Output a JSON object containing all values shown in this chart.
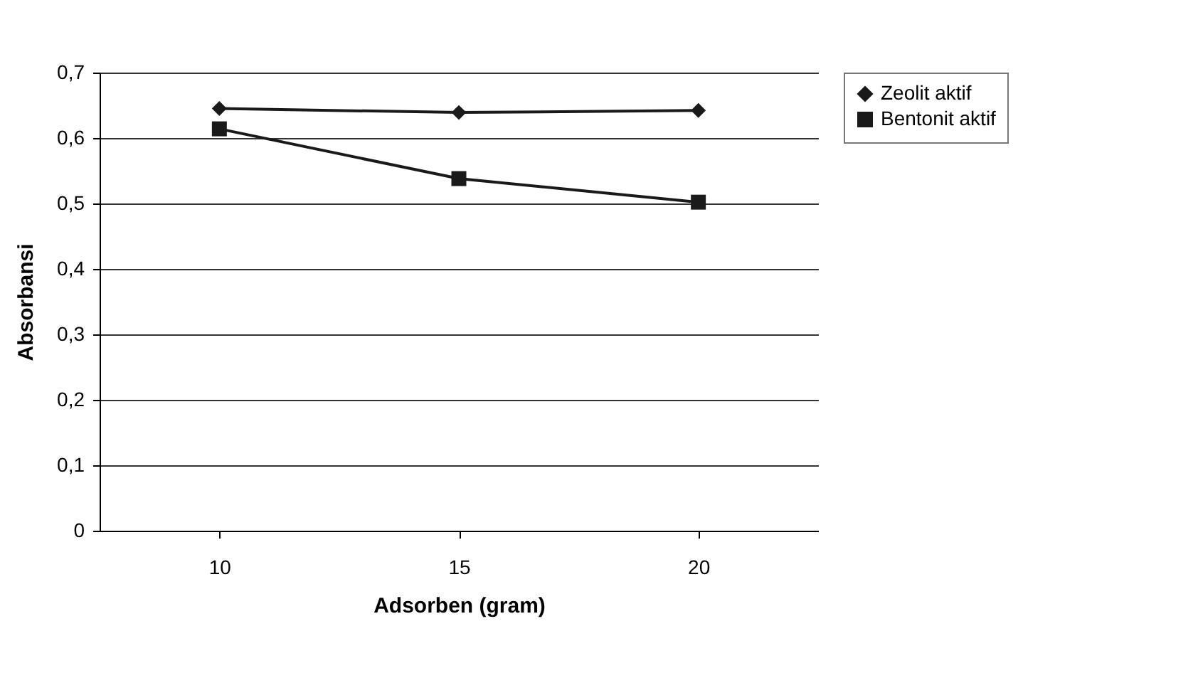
{
  "chart_data": {
    "type": "line",
    "xlabel": "Adsorben (gram)",
    "ylabel": "Absorbansi",
    "categories": [
      "10",
      "15",
      "20"
    ],
    "series": [
      {
        "name": "Zeolit aktif",
        "color": "#1a1a1a",
        "marker": "diamond",
        "values": [
          0.645,
          0.639,
          0.642
        ]
      },
      {
        "name": "Bentonit aktif",
        "color": "#1a1a1a",
        "marker": "square",
        "values": [
          0.614,
          0.538,
          0.502
        ]
      }
    ],
    "ylim": [
      0,
      0.7
    ],
    "yticks": [
      0,
      {
        "value": 0.1,
        "label": "0,1"
      },
      {
        "value": 0.2,
        "label": "0,2"
      },
      {
        "value": 0.3,
        "label": "0,3"
      },
      {
        "value": 0.4,
        "label": "0,4"
      },
      {
        "value": 0.5,
        "label": "0,5"
      },
      {
        "value": 0.6,
        "label": "0,6"
      },
      {
        "value": 0.7,
        "label": "0,7"
      }
    ],
    "grid": "y",
    "legend": "right",
    "line_style": "solid"
  }
}
